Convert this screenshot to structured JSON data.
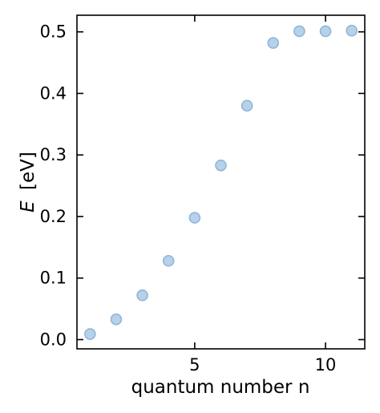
{
  "chart_data": {
    "type": "scatter",
    "title": "",
    "xlabel": "quantum number n",
    "ylabel_italic": "E",
    "ylabel_unit": "[eV]",
    "xlim": [
      0.5,
      11.5
    ],
    "ylim": [
      -0.015,
      0.527
    ],
    "xticks": [
      {
        "value": 5,
        "label": "5"
      },
      {
        "value": 10,
        "label": "10"
      }
    ],
    "yticks": [
      {
        "value": 0.0,
        "label": "0.0"
      },
      {
        "value": 0.1,
        "label": "0.1"
      },
      {
        "value": 0.2,
        "label": "0.2"
      },
      {
        "value": 0.3,
        "label": "0.3"
      },
      {
        "value": 0.4,
        "label": "0.4"
      },
      {
        "value": 0.5,
        "label": "0.5"
      }
    ],
    "grid": false,
    "marker_fill": "#b7d1e8",
    "marker_edge": "#8fb6da",
    "series": [
      {
        "x": [
          1,
          2,
          3,
          4,
          5,
          6,
          7,
          8,
          9,
          10,
          11
        ],
        "y": [
          0.009,
          0.033,
          0.072,
          0.128,
          0.198,
          0.283,
          0.38,
          0.482,
          0.501,
          0.501,
          0.502
        ]
      }
    ]
  }
}
